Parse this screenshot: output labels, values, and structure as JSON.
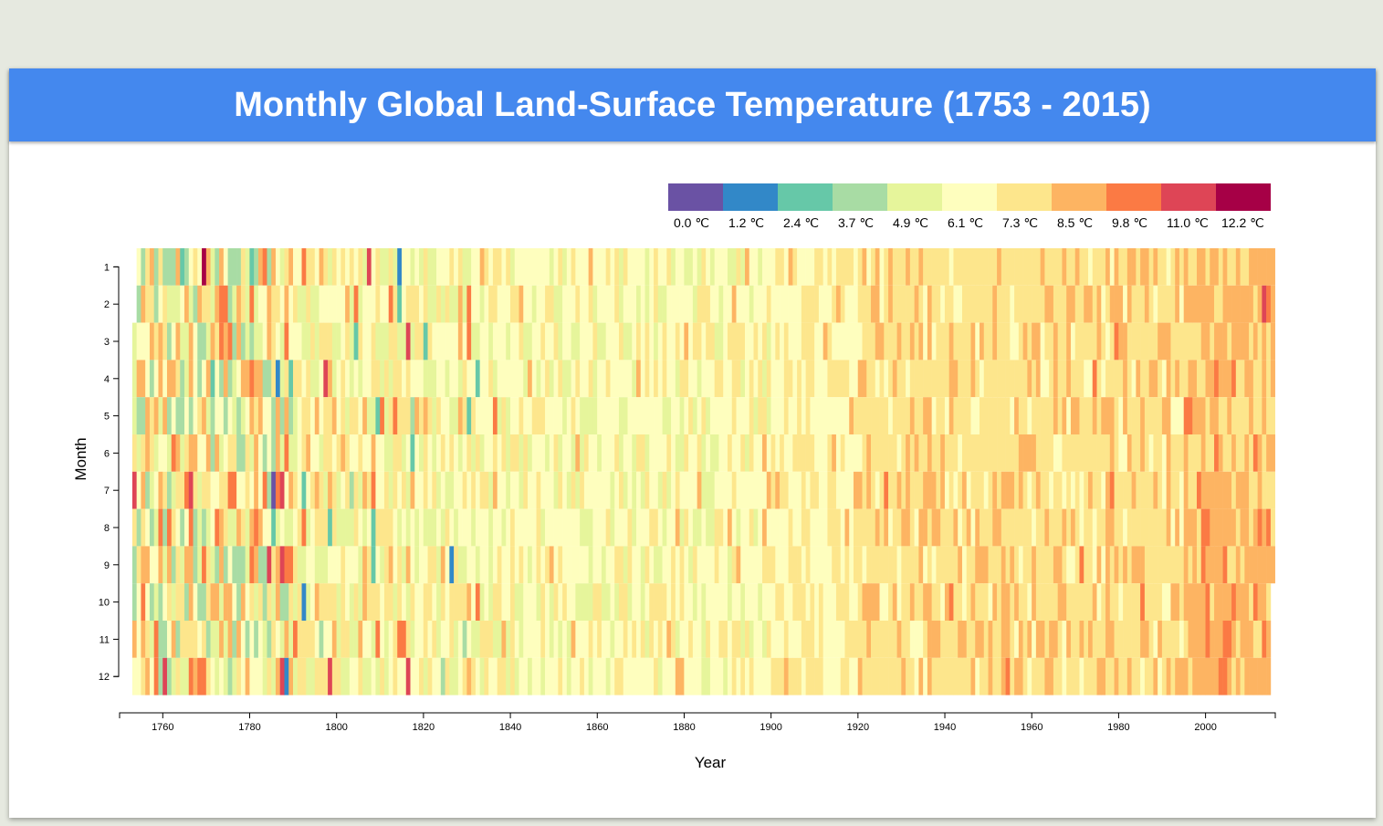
{
  "page": {
    "title": "Monthly Global Land-Surface Temperature (1753 - 2015)"
  },
  "chart_data": {
    "type": "heatmap",
    "title": "Monthly Global Land-Surface Temperature (1753 - 2015)",
    "xlabel": "Year",
    "ylabel": "Month",
    "x_range": [
      1753,
      2015
    ],
    "months": [
      "1",
      "2",
      "3",
      "4",
      "5",
      "6",
      "7",
      "8",
      "9",
      "10",
      "11",
      "12"
    ],
    "x_ticks": [
      "1760",
      "1780",
      "1800",
      "1820",
      "1840",
      "1860",
      "1880",
      "1900",
      "1920",
      "1940",
      "1960",
      "1980",
      "2000"
    ],
    "legend": {
      "labels": [
        "0.0 ℃",
        "1.2 ℃",
        "2.4 ℃",
        "3.7 ℃",
        "4.9 ℃",
        "6.1 ℃",
        "7.3 ℃",
        "8.5 ℃",
        "9.8 ℃",
        "11.0 ℃",
        "12.2 ℃"
      ],
      "colors": [
        "#6a52a4",
        "#3288c8",
        "#66c8a8",
        "#a8dca4",
        "#e6f59b",
        "#fefebe",
        "#fde68c",
        "#fdb462",
        "#fb7a44",
        "#de4556",
        "#a60046"
      ]
    },
    "approximate_cell_values": "per-year/month values estimated from color bands; early years (1753-1830) vary between 0.0 and 12.2 ℃, mid 1800s mostly 6.1-7.3 ℃, 1920-1995 mostly 7.3-8.5 ℃, post-2000 8.5-9.8 ℃"
  }
}
